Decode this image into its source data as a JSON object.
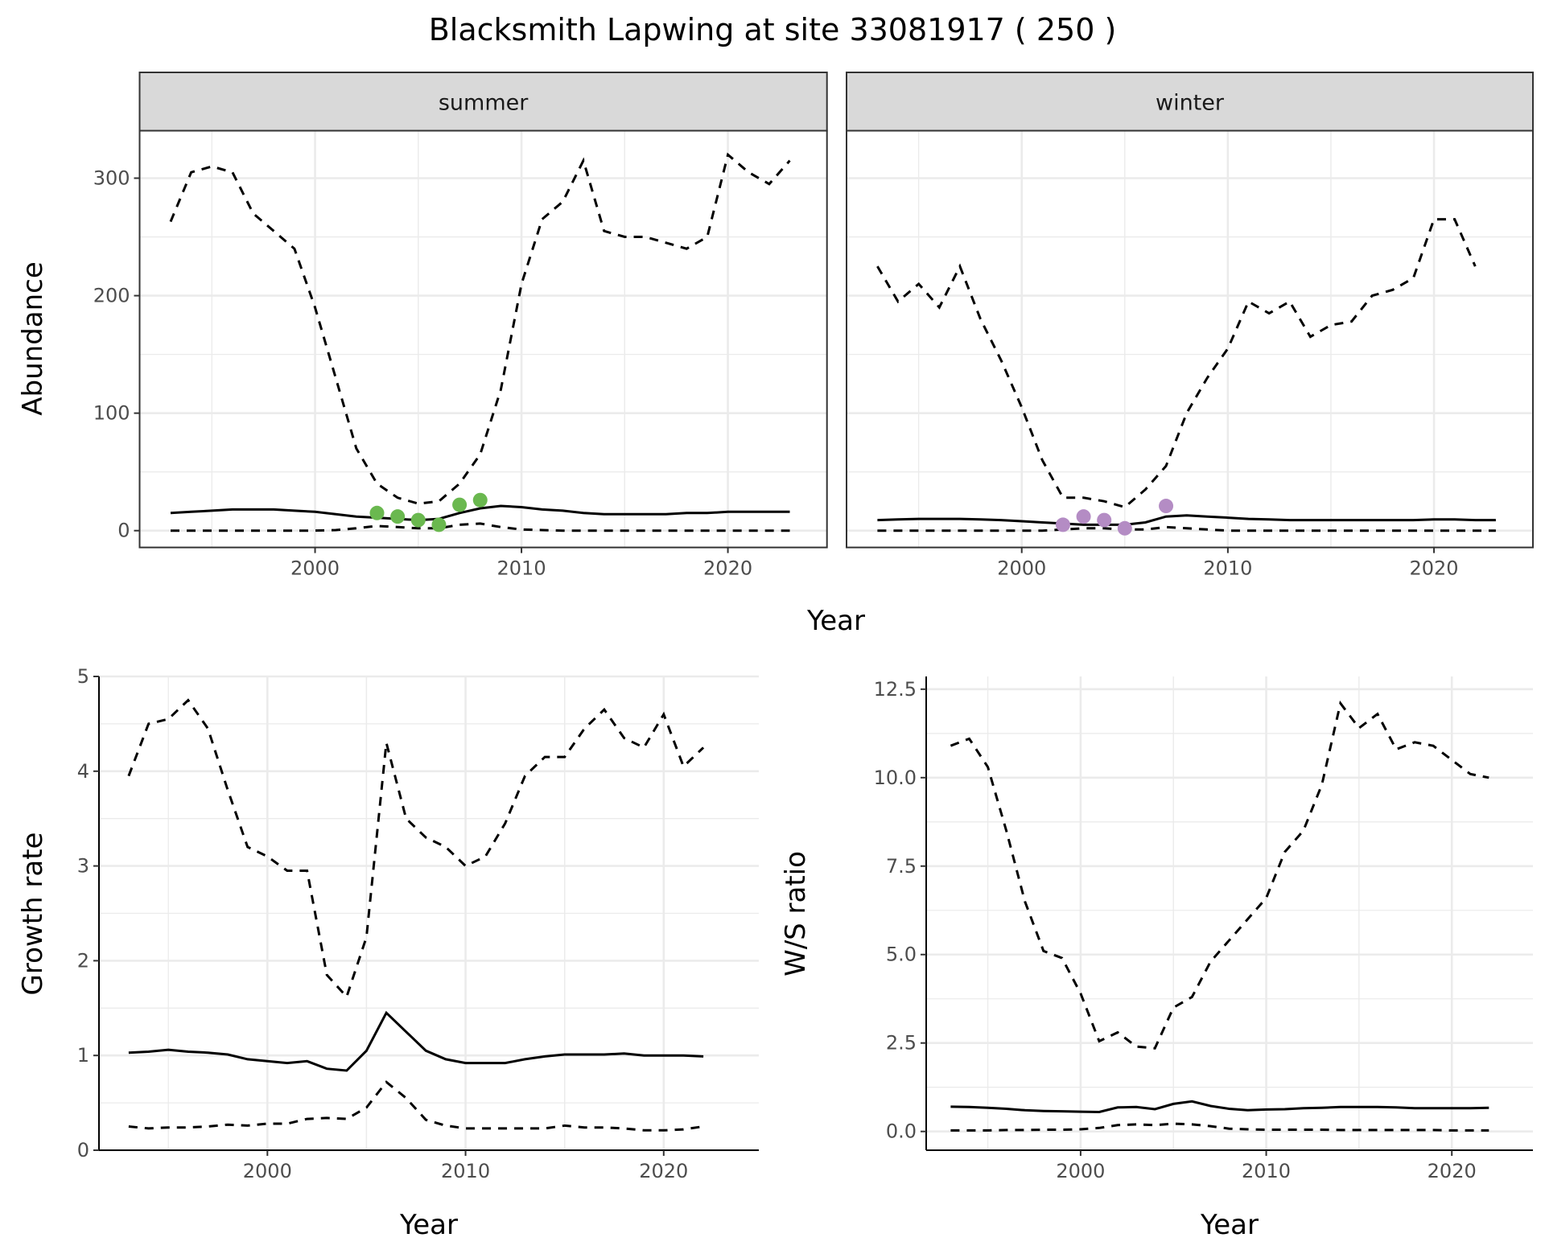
{
  "title": "Blacksmith Lapwing at site 33081917 ( 250 )",
  "colors": {
    "summer_points": "#6ab84f",
    "winter_points": "#b48cc4",
    "lines": "#000000",
    "strip": "#d9d9d9",
    "grid": "#ebebeb"
  },
  "chart_data": [
    {
      "type": "line",
      "panel": "summer",
      "strip": "summer",
      "xlabel": "Year",
      "ylabel": "Abundance",
      "xlim": [
        1991.5,
        2024.8
      ],
      "ylim": [
        -14.3,
        340.4
      ],
      "xticks": [
        2000,
        2010,
        2020
      ],
      "yticks": [
        0,
        100,
        200,
        300
      ],
      "grid": true,
      "x": [
        1993,
        1994,
        1995,
        1996,
        1997,
        1998,
        1999,
        2000,
        2001,
        2002,
        2003,
        2004,
        2005,
        2006,
        2007,
        2008,
        2009,
        2010,
        2011,
        2012,
        2013,
        2014,
        2015,
        2016,
        2017,
        2018,
        2019,
        2020,
        2021,
        2022,
        2023
      ],
      "upper": [
        263,
        305,
        310,
        305,
        270,
        255,
        240,
        190,
        130,
        70,
        40,
        28,
        23,
        25,
        40,
        65,
        120,
        210,
        265,
        280,
        315,
        255,
        250,
        250,
        245,
        240,
        250,
        320,
        305,
        295,
        315
      ],
      "mean": [
        15,
        16,
        17,
        18,
        18,
        18,
        17,
        16,
        14,
        12,
        11,
        10,
        9,
        10,
        15,
        19,
        21,
        20,
        18,
        17,
        15,
        14,
        14,
        14,
        14,
        15,
        15,
        16,
        16,
        16,
        16
      ],
      "lower": [
        0,
        0,
        0,
        0,
        0,
        0,
        0,
        0,
        0.5,
        2,
        4,
        3,
        2,
        2,
        5,
        6,
        3,
        1,
        0.5,
        0,
        0,
        0,
        0,
        0,
        0,
        0,
        0,
        0,
        0,
        0,
        0
      ],
      "points": {
        "x": [
          2003,
          2004,
          2005,
          2006,
          2007,
          2008
        ],
        "y": [
          15,
          12,
          9,
          5,
          22,
          26
        ]
      }
    },
    {
      "type": "line",
      "panel": "winter",
      "strip": "winter",
      "xlim": [
        1991.5,
        2024.8
      ],
      "ylim": [
        -14.3,
        340.4
      ],
      "xticks": [
        2000,
        2010,
        2020
      ],
      "grid": true,
      "x": [
        1993,
        1994,
        1995,
        1996,
        1997,
        1998,
        1999,
        2000,
        2001,
        2002,
        2003,
        2004,
        2005,
        2006,
        2007,
        2008,
        2009,
        2010,
        2011,
        2012,
        2013,
        2014,
        2015,
        2016,
        2017,
        2018,
        2019,
        2020,
        2021,
        2022,
        2023
      ],
      "upper": [
        225,
        195,
        210,
        190,
        225,
        180,
        145,
        105,
        60,
        28,
        28,
        25,
        20,
        35,
        55,
        100,
        130,
        155,
        195,
        185,
        195,
        165,
        175,
        178,
        200,
        205,
        215,
        265,
        265,
        225,
        null
      ],
      "mean": [
        9,
        9.5,
        10,
        10,
        10,
        9.5,
        9,
        8,
        7,
        6,
        5,
        5,
        5,
        7,
        12,
        13,
        12,
        11,
        10,
        9.5,
        9,
        9,
        9,
        9,
        9,
        9,
        9,
        9.5,
        9.5,
        9,
        9
      ],
      "lower": [
        0,
        0,
        0,
        0,
        0,
        0,
        0,
        0,
        0,
        1,
        2,
        2,
        1,
        1,
        3,
        2,
        1,
        0,
        0,
        0,
        0,
        0,
        0,
        0,
        0,
        0,
        0,
        0,
        0,
        0,
        0
      ],
      "points": {
        "x": [
          2002,
          2003,
          2004,
          2005,
          2007
        ],
        "y": [
          5,
          12,
          9,
          2,
          21
        ]
      }
    },
    {
      "type": "line",
      "panel": "growth",
      "xlabel": "Year",
      "ylabel": "Growth rate",
      "xlim": [
        1991.5,
        2024.8
      ],
      "ylim": [
        0,
        5
      ],
      "xticks": [
        2000,
        2010,
        2020
      ],
      "yticks": [
        0,
        1,
        2,
        3,
        4,
        5
      ],
      "grid": true,
      "x": [
        1993,
        1994,
        1995,
        1996,
        1997,
        1998,
        1999,
        2000,
        2001,
        2002,
        2003,
        2004,
        2005,
        2006,
        2007,
        2008,
        2009,
        2010,
        2011,
        2012,
        2013,
        2014,
        2015,
        2016,
        2017,
        2018,
        2019,
        2020,
        2021,
        2022
      ],
      "upper": [
        3.95,
        4.5,
        4.55,
        4.75,
        4.45,
        3.8,
        3.2,
        3.1,
        2.95,
        2.95,
        1.85,
        1.62,
        2.25,
        4.3,
        3.5,
        3.3,
        3.2,
        3.0,
        3.1,
        3.45,
        3.95,
        4.15,
        4.15,
        4.45,
        4.65,
        4.35,
        4.25,
        4.6,
        4.05,
        4.25
      ],
      "mean": [
        1.03,
        1.04,
        1.06,
        1.04,
        1.03,
        1.01,
        0.96,
        0.94,
        0.92,
        0.94,
        0.86,
        0.84,
        1.05,
        1.45,
        1.25,
        1.05,
        0.96,
        0.92,
        0.92,
        0.92,
        0.96,
        0.99,
        1.01,
        1.01,
        1.01,
        1.02,
        1.0,
        1.0,
        1.0,
        0.99
      ],
      "lower": [
        0.25,
        0.23,
        0.24,
        0.24,
        0.25,
        0.27,
        0.26,
        0.28,
        0.28,
        0.33,
        0.34,
        0.33,
        0.45,
        0.72,
        0.55,
        0.32,
        0.26,
        0.23,
        0.23,
        0.23,
        0.23,
        0.23,
        0.26,
        0.24,
        0.24,
        0.23,
        0.21,
        0.21,
        0.22,
        0.25
      ]
    },
    {
      "type": "line",
      "panel": "ratio",
      "xlabel": "Year",
      "ylabel": "W/S ratio",
      "xlim": [
        1991.68,
        2024.37
      ],
      "ylim": [
        -0.53,
        12.86
      ],
      "xticks": [
        2000,
        2010,
        2020
      ],
      "yticks": [
        0,
        2.5,
        5,
        7.5,
        10,
        12.5
      ],
      "ytick_labels": [
        "0.0",
        "2.5",
        "5.0",
        "7.5",
        "10.0",
        "12.5"
      ],
      "grid": true,
      "x": [
        1993,
        1994,
        1995,
        1996,
        1997,
        1998,
        1999,
        2000,
        2001,
        2002,
        2003,
        2004,
        2005,
        2006,
        2007,
        2008,
        2009,
        2010,
        2011,
        2012,
        2013,
        2014,
        2015,
        2016,
        2017,
        2018,
        2019,
        2020,
        2021,
        2022
      ],
      "upper": [
        10.9,
        11.1,
        10.3,
        8.5,
        6.5,
        5.1,
        4.9,
        3.9,
        2.55,
        2.8,
        2.4,
        2.35,
        3.5,
        3.8,
        4.8,
        5.4,
        6.0,
        6.6,
        7.9,
        8.5,
        9.8,
        12.1,
        11.4,
        11.8,
        10.8,
        11.0,
        10.9,
        10.5,
        10.1,
        10.0
      ],
      "mean": [
        0.7,
        0.69,
        0.67,
        0.64,
        0.6,
        0.58,
        0.57,
        0.56,
        0.55,
        0.68,
        0.69,
        0.63,
        0.78,
        0.85,
        0.72,
        0.64,
        0.6,
        0.62,
        0.63,
        0.66,
        0.67,
        0.69,
        0.69,
        0.69,
        0.68,
        0.66,
        0.66,
        0.66,
        0.66,
        0.67
      ],
      "lower": [
        0.03,
        0.03,
        0.03,
        0.04,
        0.04,
        0.05,
        0.05,
        0.06,
        0.1,
        0.18,
        0.2,
        0.18,
        0.22,
        0.2,
        0.15,
        0.08,
        0.06,
        0.05,
        0.05,
        0.05,
        0.05,
        0.04,
        0.04,
        0.04,
        0.04,
        0.04,
        0.04,
        0.03,
        0.03,
        0.03
      ]
    }
  ]
}
